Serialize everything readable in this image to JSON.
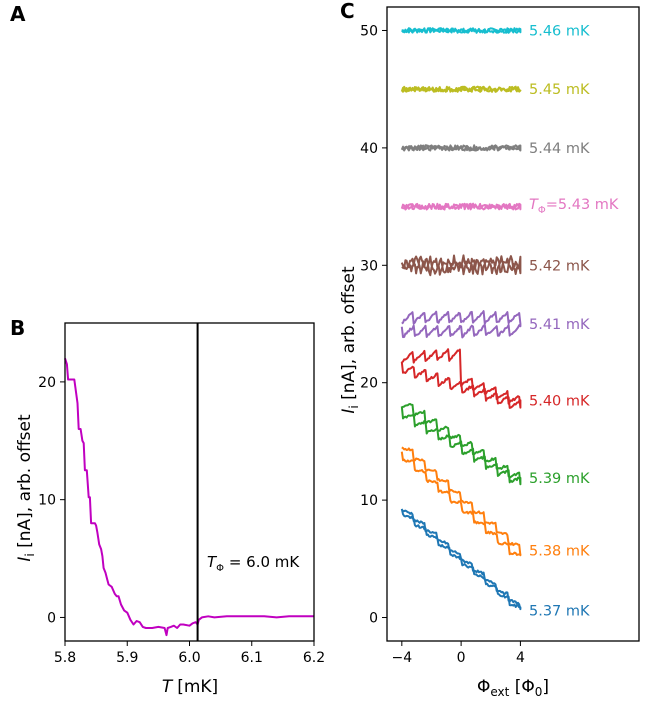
{
  "panels": {
    "a": "A",
    "b": "B",
    "c": "C"
  },
  "chart_data": [
    {
      "id": "B",
      "type": "line",
      "xlabel_main": "T",
      "xlabel_unit": "[mK]",
      "ylabel": "I_i [nA], arb. offset",
      "ylabel_main": "I",
      "ylabel_sub": "i",
      "ylabel_rest": " [nA], arb. offset",
      "xlim": [
        5.8,
        6.2
      ],
      "ylim": [
        -2,
        25
      ],
      "xticks": [
        5.8,
        5.9,
        6.0,
        6.1,
        6.2
      ],
      "xtick_labels": [
        "5.8",
        "5.9",
        "6.0",
        "6.1",
        "6.2"
      ],
      "yticks": [
        0,
        10,
        20
      ],
      "ytick_labels": [
        "0",
        "10",
        "20"
      ],
      "annotation": {
        "sym": "T",
        "sub": "Φ",
        "text": " = 6.0 mK"
      },
      "vline_x": 6.013,
      "color": "#c000c0",
      "series": [
        {
          "x": [
            5.8,
            5.803,
            5.805,
            5.806,
            5.81,
            5.815,
            5.82,
            5.822,
            5.825,
            5.828,
            5.83,
            5.832,
            5.835,
            5.838,
            5.84,
            5.842,
            5.845,
            5.848,
            5.85,
            5.852,
            5.855,
            5.858,
            5.86,
            5.862,
            5.865,
            5.868,
            5.87,
            5.875,
            5.88,
            5.883,
            5.886,
            5.89,
            5.895,
            5.9,
            5.905,
            5.91,
            5.915,
            5.92,
            5.925,
            5.93,
            5.94,
            5.95,
            5.96,
            5.963,
            5.965,
            5.97,
            5.975,
            5.98,
            5.985,
            5.99,
            6.0,
            6.005,
            6.01,
            6.013,
            6.015,
            6.02,
            6.03,
            6.04,
            6.06,
            6.08,
            6.1,
            6.12,
            6.14,
            6.16,
            6.18,
            6.2
          ],
          "y": [
            22.0,
            21.5,
            20.2,
            20.2,
            20.2,
            20.2,
            18.2,
            16.0,
            16.0,
            15.0,
            14.8,
            12.5,
            12.5,
            10.2,
            10.2,
            8.0,
            8.0,
            8.0,
            7.8,
            7.2,
            6.2,
            5.8,
            5.2,
            4.2,
            3.8,
            3.2,
            2.8,
            2.6,
            2.0,
            1.8,
            1.8,
            1.1,
            0.6,
            0.4,
            -0.2,
            -0.6,
            -0.3,
            -0.4,
            -0.8,
            -0.9,
            -0.9,
            -0.8,
            -0.9,
            -1.5,
            -0.9,
            -0.8,
            -0.7,
            -0.9,
            -0.6,
            -0.6,
            -0.7,
            -0.5,
            -0.4,
            -0.6,
            -0.2,
            0.0,
            0.1,
            0.0,
            0.1,
            0.1,
            0.1,
            0.1,
            0.0,
            0.1,
            0.1,
            0.1
          ]
        }
      ]
    },
    {
      "id": "C",
      "type": "line",
      "xlabel_main": "Φ",
      "xlabel_sub": "ext",
      "xlabel_rest": " [Φ",
      "xlabel_sub2": "0",
      "xlabel_end": "]",
      "ylabel": "I_i [nA], arb. offset",
      "ylabel_main": "I",
      "ylabel_sub": "i",
      "ylabel_rest": " [nA], arb. offset",
      "xlim": [
        -5,
        12
      ],
      "ylim": [
        -2,
        52
      ],
      "xticks": [
        -4,
        0,
        4
      ],
      "xtick_labels": [
        "−4",
        "0",
        "4"
      ],
      "yticks": [
        0,
        10,
        20,
        30,
        40,
        50
      ],
      "ytick_labels": [
        "0",
        "10",
        "20",
        "30",
        "40",
        "50"
      ],
      "series": [
        {
          "label": "5.46 mK",
          "color": "#17becf",
          "shape": "flat",
          "center": 50.0,
          "amp": 0.4
        },
        {
          "label": "5.45 mK",
          "color": "#bcbd22",
          "shape": "flat",
          "center": 45.0,
          "amp": 0.45
        },
        {
          "label": "5.44 mK",
          "color": "#7f7f7f",
          "shape": "flat",
          "center": 40.0,
          "amp": 0.45
        },
        {
          "label": "=5.43 mK",
          "label_prefix_sym": "T",
          "label_prefix_sub": "Φ",
          "color": "#e377c2",
          "shape": "flat",
          "center": 35.0,
          "amp": 0.5
        },
        {
          "label": "5.42 mK",
          "color": "#8c564b",
          "shape": "zigzag",
          "center": 30.0,
          "amp": 0.7
        },
        {
          "label": "5.41 mK",
          "color": "#9467bd",
          "shape": "loop",
          "left_upper": 25.6,
          "right_upper": 25.6,
          "left_lower": 24.3,
          "right_lower": 24.4,
          "amp": 0.5
        },
        {
          "label": "5.40 mK",
          "color": "#d62728",
          "shape": "loop",
          "left_upper": 22.2,
          "mid_upper": 22.5,
          "right_upper": 18.4,
          "left_lower": 21.2,
          "right_lower": 18.0,
          "amp": 0.5
        },
        {
          "label": "5.39 mK",
          "color": "#2ca02c",
          "shape": "loop",
          "left_upper": 18.4,
          "right_upper": 11.8,
          "left_lower": 17.4,
          "right_lower": 11.4,
          "amp": 0.5
        },
        {
          "label": "5.38 mK",
          "color": "#ff7f0e",
          "shape": "loop",
          "left_upper": 14.8,
          "right_upper": 5.8,
          "left_lower": 13.8,
          "right_lower": 5.0,
          "amp": 0.4
        },
        {
          "label": "5.37 mK",
          "color": "#1f77b4",
          "shape": "loop",
          "left_upper": 9.4,
          "right_upper": 0.9,
          "left_lower": 9.0,
          "right_lower": 0.6,
          "amp": 0.25
        }
      ],
      "label_y": [
        50.0,
        45.0,
        40.0,
        35.2,
        30.0,
        25.0,
        18.5,
        11.9,
        5.7,
        0.6
      ]
    }
  ]
}
